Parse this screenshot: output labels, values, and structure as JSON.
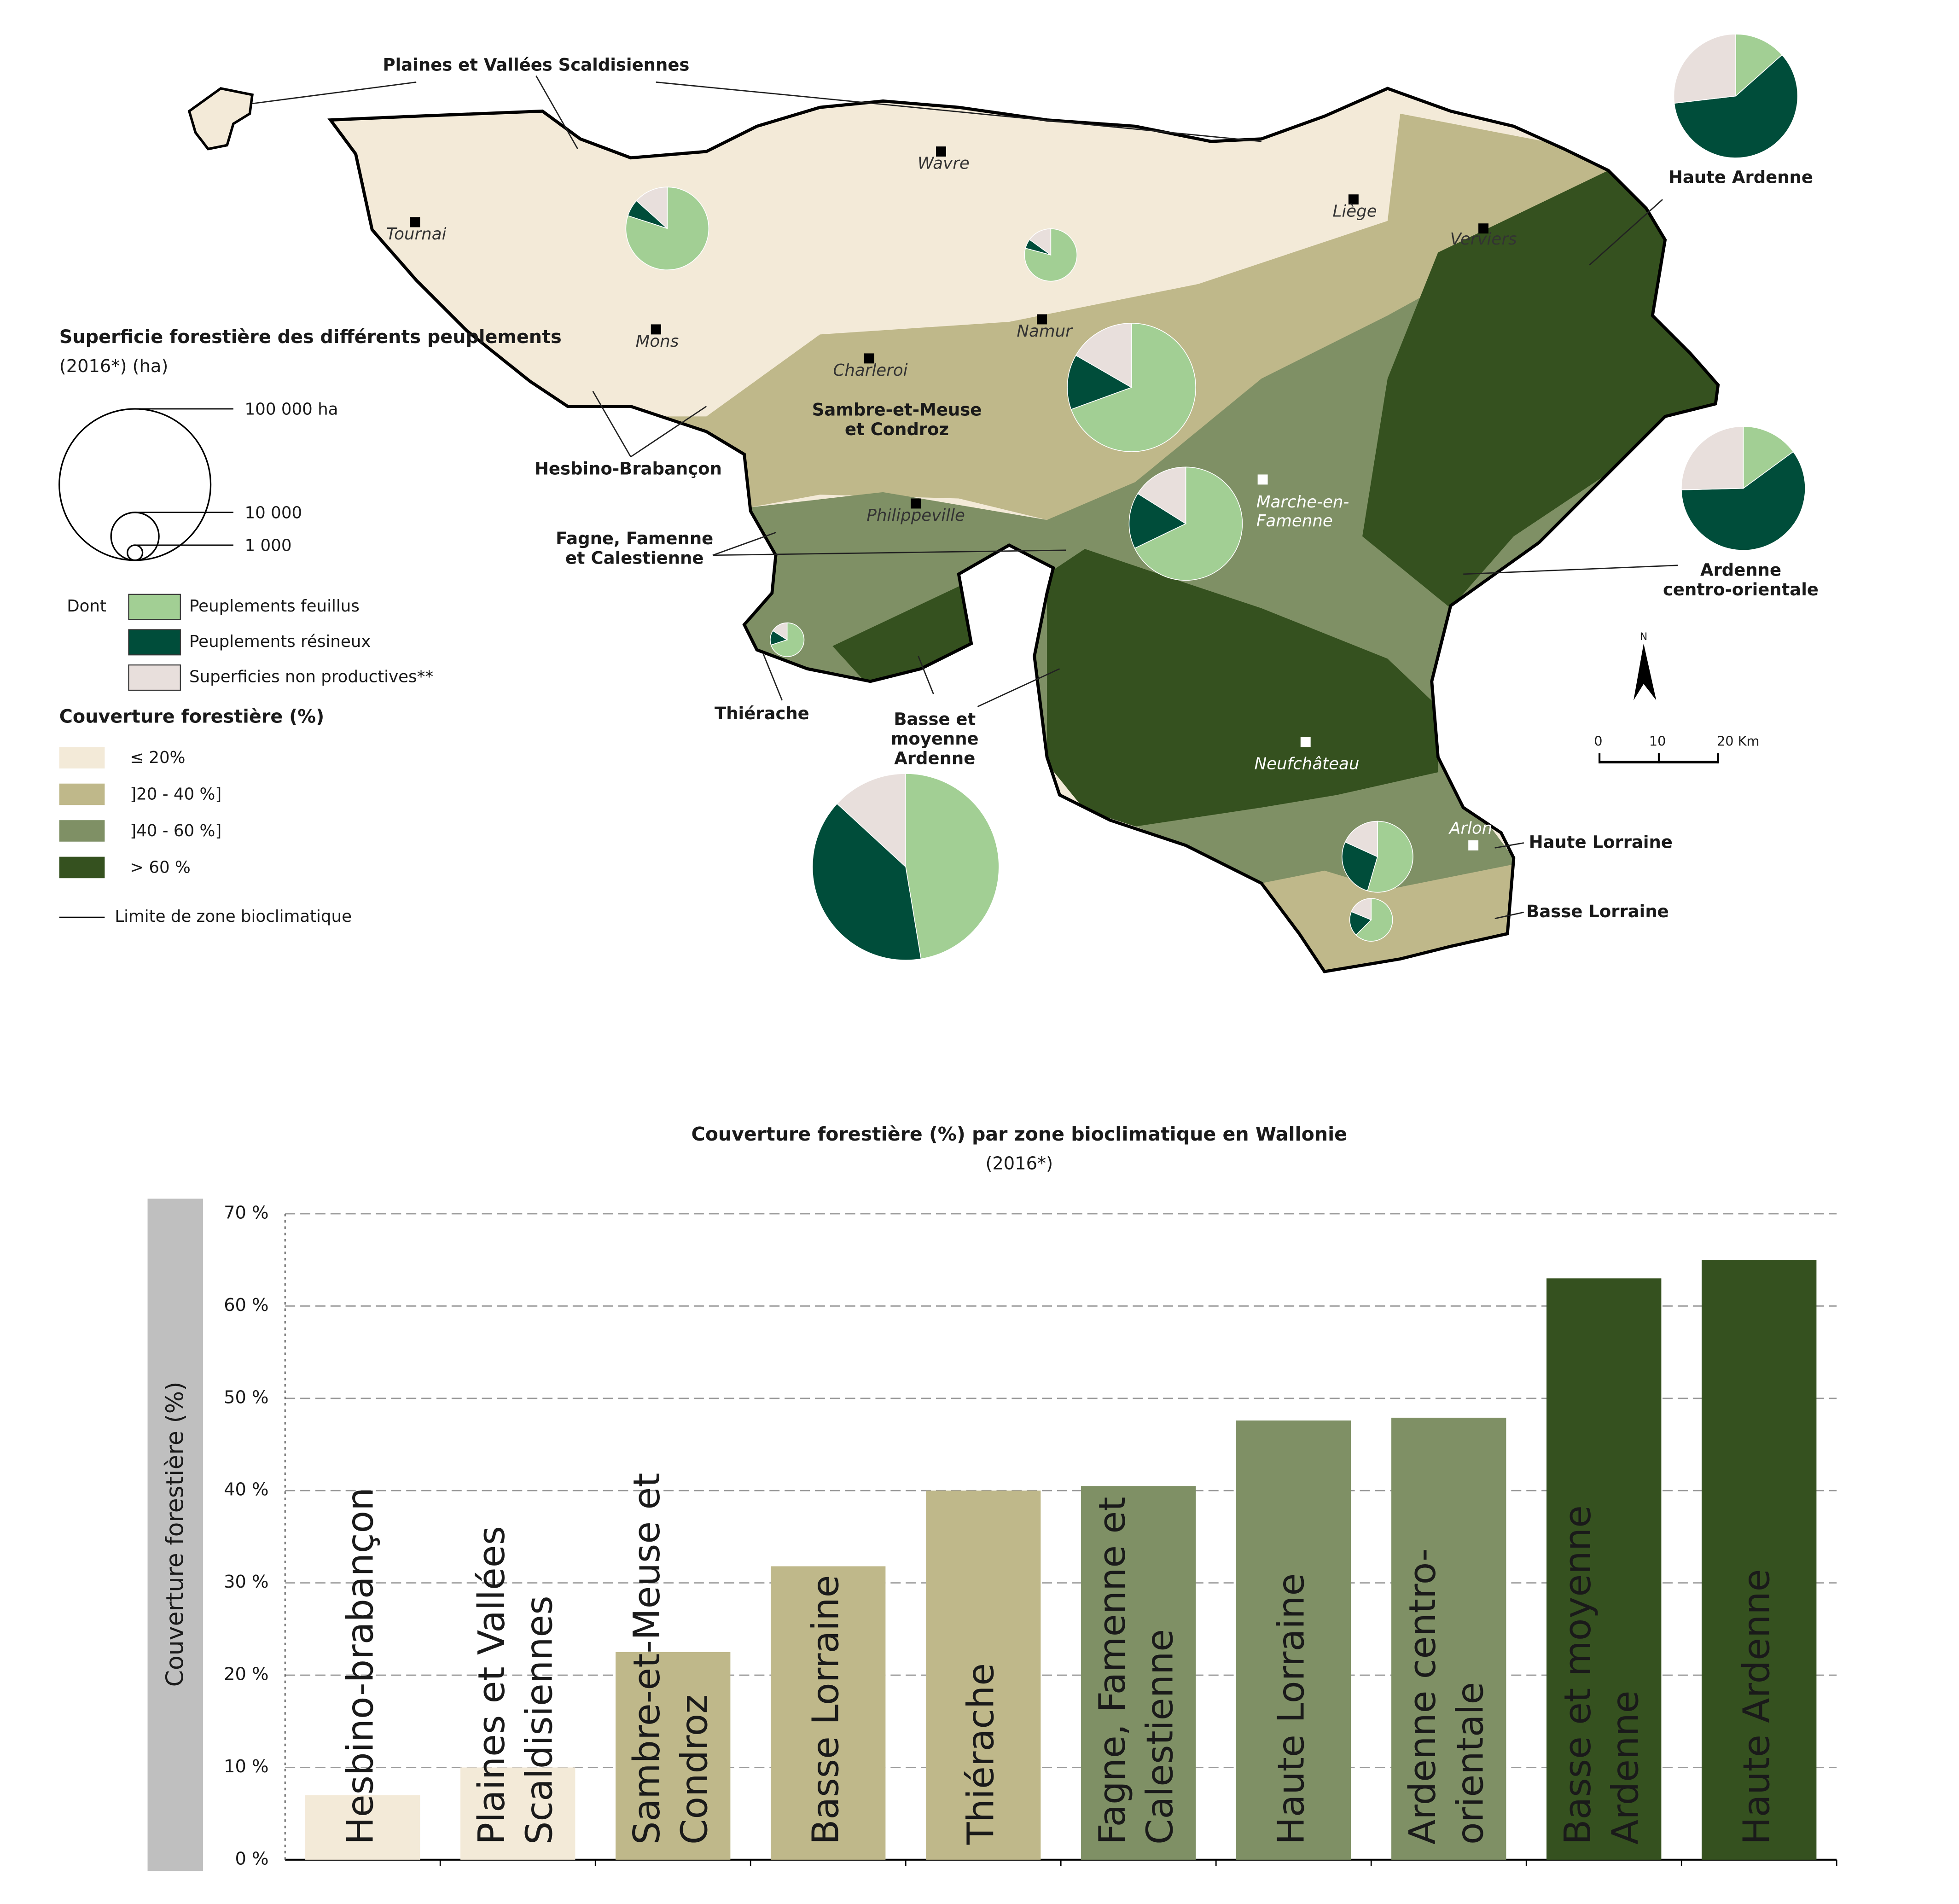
{
  "chart_data": [
    {
      "type": "map",
      "legend_title": "Superficie forestière des différents peuplements",
      "legend_subtitle": "(2016*) (ha)",
      "size_legend": [
        {
          "value": 100000,
          "label": "100 000 ha"
        },
        {
          "value": 10000,
          "label": "10 000"
        },
        {
          "value": 1000,
          "label": "1 000"
        }
      ],
      "dont": "Dont",
      "series": [
        {
          "name": "Peuplements feuillus",
          "color": "#a2cf94"
        },
        {
          "name": "Peuplements résineux",
          "color": "#004d3a"
        },
        {
          "name": "Superficies non productives**",
          "color": "#e8dfdc"
        }
      ],
      "coverage_title": "Couverture forestière (%)",
      "coverage_classes": [
        {
          "name": "≤ 20%",
          "color": "#f3ead8"
        },
        {
          "name": "]20 - 40 %]",
          "color": "#bfb88a"
        },
        {
          "name": "]40 - 60 %]",
          "color": "#7f9065"
        },
        {
          "name": "> 60 %",
          "color": "#35511f"
        }
      ],
      "boundary_label": "Limite de zone bioclimatique",
      "zones": [
        {
          "name": "Plaines et Vallées Scaldisiennes",
          "values": [
            24000,
            2000,
            4000
          ]
        },
        {
          "name": "Hesbino-Brabançon",
          "values": [
            9500,
            700,
            1800
          ]
        },
        {
          "name": "Sambre-et-Meuse et Condroz",
          "values": [
            50000,
            10000,
            12000
          ]
        },
        {
          "name": "Fagne, Famenne et Calestienne",
          "values": [
            38000,
            9000,
            9000
          ]
        },
        {
          "name": "Thiérache",
          "values": [
            3500,
            700,
            800
          ]
        },
        {
          "name": "Basse et moyenne Ardenne",
          "values": [
            72000,
            60000,
            20000
          ]
        },
        {
          "name": "Ardenne centro-orientale",
          "values": [
            10000,
            40000,
            17000
          ]
        },
        {
          "name": "Haute Ardenne",
          "values": [
            9000,
            40000,
            18000
          ]
        },
        {
          "name": "Haute Lorraine",
          "values": [
            12000,
            6000,
            4000
          ]
        },
        {
          "name": "Basse Lorraine",
          "values": [
            5000,
            1500,
            1500
          ]
        }
      ],
      "cities": [
        "Tournai",
        "Mons",
        "Wavre",
        "Charleroi",
        "Namur",
        "Liège",
        "Verviers",
        "Philippeville",
        "Marche-en-Famenne",
        "Neufchâteau",
        "Arlon"
      ],
      "north": "N",
      "scale": [
        0,
        10,
        {
          "value": 20,
          "label": "20 Km"
        }
      ]
    },
    {
      "type": "bar",
      "title": "Couverture forestière (%) par zone bioclimatique en Wallonie",
      "subtitle": "(2016*)",
      "y_label": "Couverture forestière (%)",
      "categories": [
        "Hesbino-brabançon",
        "Plaines et Vallées Scaldisiennes",
        "Sambre-et-Meuse et Condroz",
        "Basse Lorraine",
        "Thiérache",
        "Fagne, Famenne et Calestienne",
        "Haute Lorraine",
        "Ardenne centro-orientale",
        "Basse et moyenne Ardenne",
        "Haute Ardenne"
      ],
      "values": [
        7,
        10,
        22.5,
        31.8,
        40,
        40.5,
        47.6,
        47.9,
        63,
        65
      ],
      "colors": [
        "#f3ead8",
        "#f3ead8",
        "#bfb88a",
        "#bfb88a",
        "#bfb88a",
        "#7f9065",
        "#7f9065",
        "#7f9065",
        "#35511f",
        "#35511f"
      ],
      "ylim": [
        0,
        70
      ],
      "yticks": [
        {
          "value": 0,
          "label": "0 %"
        },
        {
          "value": 10,
          "label": "10 %"
        },
        {
          "value": 20,
          "label": "20 %"
        },
        {
          "value": 30,
          "label": "30 %"
        },
        {
          "value": 40,
          "label": "40 %"
        },
        {
          "value": 50,
          "label": "50 %"
        },
        {
          "value": 60,
          "label": "60 %"
        },
        {
          "value": 70,
          "label": "70 %"
        }
      ],
      "grid": true
    }
  ]
}
